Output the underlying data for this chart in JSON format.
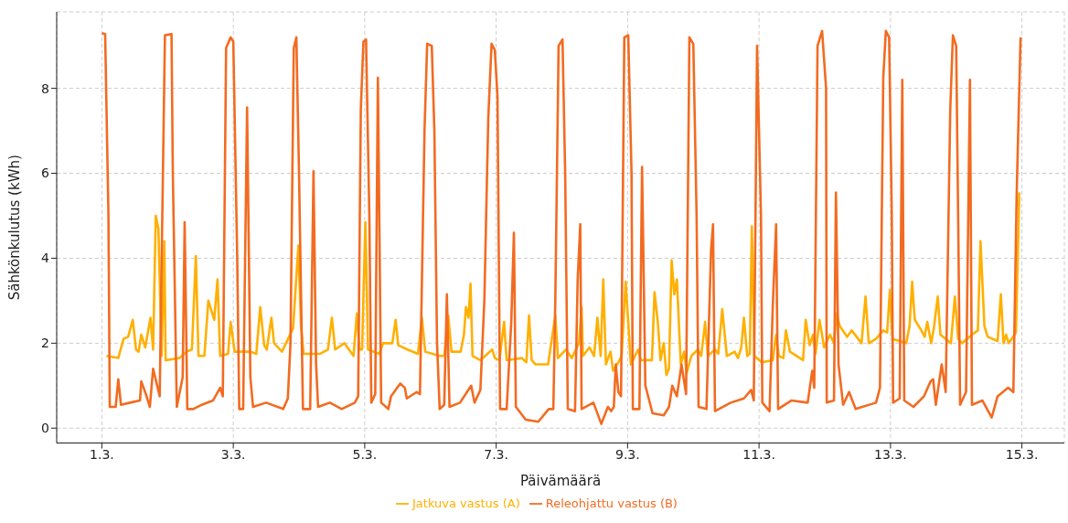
{
  "chart_data": {
    "type": "line",
    "xlabel": "Päivämäärä",
    "ylabel": "Sähkönkulutus (kWh)",
    "xlim": [
      "--02-28T07:30",
      "--03-15T15:30"
    ],
    "ylim": [
      -0.35,
      9.8
    ],
    "xticks": [
      {
        "value": "--03-01",
        "label": "1.3."
      },
      {
        "value": "--03-03",
        "label": "3.3."
      },
      {
        "value": "--03-05",
        "label": "5.3."
      },
      {
        "value": "--03-07",
        "label": "7.3."
      },
      {
        "value": "--03-09",
        "label": "9.3."
      },
      {
        "value": "--03-11",
        "label": "11.3."
      },
      {
        "value": "--03-13",
        "label": "13.3."
      },
      {
        "value": "--03-15",
        "label": "15.3."
      }
    ],
    "yticks": [
      0,
      2,
      4,
      6,
      8
    ],
    "grid": true,
    "legend": "bottom",
    "line_style": "solid",
    "marker": "none",
    "series": [
      {
        "name": "Jatkuva vastus (A)",
        "color": "#ffb000",
        "x": [
          "--03-01T01:41",
          "--03-01T06:00",
          "--03-01T07:55",
          "--03-01T09:36",
          "--03-01T11:17",
          "--03-01T12:29",
          "--03-01T13:26",
          "--03-01T14:24",
          "--03-01T15:50",
          "--03-01T17:46",
          "--03-01T18:43",
          "--03-01T19:41",
          "--03-01T20:38",
          "--03-01T21:50",
          "--03-01T22:48",
          "--03-01T23:17",
          "--03-02T04:19",
          "--03-02T06:58",
          "--03-02T08:53",
          "--03-02T10:19",
          "--03-02T11:17",
          "--03-02T13:26",
          "--03-02T14:53",
          "--03-02T17:02",
          "--03-02T18:14",
          "--03-02T19:12",
          "--03-02T22:05",
          "--03-02T23:02",
          "--03-03T00:29",
          "--03-03T06:14",
          "--03-03T08:24",
          "--03-03T09:50",
          "--03-03T11:17",
          "--03-03T12:14",
          "--03-03T13:55",
          "--03-03T14:53",
          "--03-03T17:46",
          "--03-03T21:50",
          "--03-03T23:46",
          "--03-04T00:43",
          "--03-04T01:41",
          "--03-04T07:41",
          "--03-04T10:34",
          "--03-04T12:00",
          "--03-04T13:12",
          "--03-04T16:34",
          "--03-04T19:55",
          "--03-04T21:07",
          "--03-04T22:05",
          "--03-04T23:02",
          "--03-05T00:14",
          "--03-05T01:12",
          "--03-05T05:17",
          "--03-05T06:43",
          "--03-05T10:05",
          "--03-05T11:17",
          "--03-05T12:14",
          "--03-05T15:36",
          "--03-05T19:26",
          "--03-05T20:53",
          "--03-05T22:05",
          "--03-06T03:22",
          "--03-06T05:02",
          "--03-06T06:29",
          "--03-06T07:41",
          "--03-06T11:02",
          "--03-06T12:14",
          "--03-06T12:58",
          "--03-06T13:55",
          "--03-06T14:38",
          "--03-06T15:22",
          "--03-06T18:14",
          "--03-06T22:34",
          "--03-06T23:31",
          "--03-07T01:12",
          "--03-07T02:53",
          "--03-07T03:50",
          "--03-07T09:22",
          "--03-07T11:02",
          "--03-07T12:00",
          "--03-07T12:58",
          "--03-07T14:24",
          "--03-07T18:58",
          "--03-07T21:36",
          "--03-07T22:34",
          "--03-08T01:26",
          "--03-08T03:36",
          "--03-08T06:14",
          "--03-08T07:12",
          "--03-08T07:41",
          "--03-08T10:05",
          "--03-08T11:46",
          "--03-08T12:58",
          "--03-08T14:10",
          "--03-08T15:07",
          "--03-08T16:05",
          "--03-08T17:46",
          "--03-08T18:43",
          "--03-08T20:38",
          "--03-08T21:50",
          "--03-08T23:17",
          "--03-09T00:14",
          "--03-09T01:12",
          "--03-09T03:50",
          "--03-09T04:48",
          "--03-09T08:53",
          "--03-09T09:50",
          "--03-09T11:02",
          "--03-09T12:00",
          "--03-09T13:12",
          "--03-09T14:10",
          "--03-09T15:07",
          "--03-09T16:05",
          "--03-09T17:02",
          "--03-09T18:00",
          "--03-09T19:26",
          "--03-09T20:38",
          "--03-09T21:36",
          "--03-09T23:17",
          "--03-10T01:41",
          "--03-10T02:53",
          "--03-10T04:19",
          "--03-10T05:17",
          "--03-10T07:55",
          "--03-10T09:07",
          "--03-10T10:34",
          "--03-10T12:14",
          "--03-10T15:07",
          "--03-10T16:19",
          "--03-10T17:31",
          "--03-10T18:29",
          "--03-10T19:41",
          "--03-10T20:38",
          "--03-10T21:22",
          "--03-10T22:19",
          "--03-11T00:58",
          "--03-11T05:02",
          "--03-11T06:14",
          "--03-11T07:12",
          "--03-11T08:53",
          "--03-11T09:50",
          "--03-11T11:17",
          "--03-11T16:05",
          "--03-11T17:02",
          "--03-11T18:29",
          "--03-11T19:41",
          "--03-11T20:38",
          "--03-11T22:05",
          "--03-11T23:46",
          "--03-12T01:55",
          "--03-12T03:22",
          "--03-12T04:19",
          "--03-12T05:31",
          "--03-12T08:10",
          "--03-12T09:50",
          "--03-12T13:26",
          "--03-12T14:53",
          "--03-12T16:05",
          "--03-12T18:43",
          "--03-12T21:22",
          "--03-12T22:48",
          "--03-12T23:46",
          "--03-13T00:43",
          "--03-13T03:22",
          "--03-13T05:46",
          "--03-13T06:58",
          "--03-13T07:55",
          "--03-13T08:53",
          "--03-13T11:17",
          "--03-13T12:29",
          "--03-13T13:26",
          "--03-13T14:53",
          "--03-13T15:50",
          "--03-13T17:17",
          "--03-13T18:14",
          "--03-13T22:05",
          "--03-13T23:31",
          "--03-14T00:43",
          "--03-14T02:10",
          "--03-14T05:46",
          "--03-14T07:55",
          "--03-14T08:53",
          "--03-14T10:19",
          "--03-14T11:31",
          "--03-14T15:07",
          "--03-14T16:19",
          "--03-14T17:17",
          "--03-14T18:14",
          "--03-14T19:12",
          "--03-14T21:50",
          "--03-14T23:02"
        ],
        "values": [
          1.7,
          1.65,
          2.1,
          2.15,
          2.55,
          1.85,
          1.8,
          2.2,
          1.9,
          2.6,
          1.85,
          5.0,
          4.7,
          1.7,
          4.4,
          1.6,
          1.65,
          1.8,
          1.85,
          4.05,
          1.7,
          1.7,
          3.0,
          2.55,
          3.5,
          1.7,
          1.75,
          2.5,
          1.8,
          1.8,
          1.75,
          2.85,
          1.95,
          1.85,
          2.6,
          2.0,
          1.8,
          2.35,
          4.3,
          2.4,
          1.75,
          1.75,
          1.85,
          2.6,
          1.85,
          2.0,
          1.7,
          2.7,
          1.85,
          1.85,
          4.85,
          1.85,
          1.75,
          2.0,
          2.0,
          2.55,
          1.95,
          1.85,
          1.75,
          2.6,
          1.8,
          1.7,
          1.7,
          2.65,
          1.8,
          1.8,
          2.2,
          2.85,
          2.6,
          3.4,
          1.7,
          1.6,
          1.85,
          1.65,
          1.6,
          2.5,
          1.6,
          1.65,
          1.55,
          2.65,
          1.6,
          1.5,
          1.5,
          2.65,
          1.65,
          1.85,
          1.65,
          2.0,
          2.85,
          1.7,
          1.9,
          1.7,
          2.6,
          1.7,
          3.5,
          1.5,
          1.8,
          1.35,
          1.55,
          1.7,
          3.45,
          2.5,
          1.5,
          1.85,
          1.6,
          1.6,
          3.2,
          2.5,
          1.6,
          2.0,
          1.25,
          1.4,
          3.95,
          3.15,
          3.5,
          1.5,
          1.8,
          1.3,
          1.7,
          1.85,
          1.7,
          2.5,
          1.7,
          1.85,
          1.75,
          2.8,
          1.7,
          1.8,
          1.65,
          1.9,
          2.6,
          1.7,
          1.75,
          4.75,
          1.7,
          1.55,
          1.6,
          2.2,
          1.7,
          1.65,
          2.3,
          1.8,
          1.6,
          2.55,
          1.95,
          2.2,
          1.75,
          2.55,
          1.9,
          2.2,
          2.0,
          2.7,
          2.4,
          2.15,
          2.3,
          2.0,
          3.1,
          2.0,
          2.1,
          2.3,
          2.25,
          3.25,
          2.1,
          2.05,
          2.0,
          2.4,
          3.45,
          2.55,
          2.3,
          2.15,
          2.5,
          2.0,
          2.35,
          3.1,
          2.2,
          2.0,
          3.1,
          2.1,
          2.0,
          2.2,
          2.3,
          4.4,
          2.4,
          2.15,
          2.05,
          3.15,
          2.0,
          2.2,
          2.0,
          2.25,
          5.55
        ]
      },
      {
        "name": "Releohjattu vastus (B)",
        "color": "#f26b21",
        "x": [
          "--03-01T00:00",
          "--03-01T01:12",
          "--03-01T02:24",
          "--03-01T02:53",
          "--03-01T05:02",
          "--03-01T06:00",
          "--03-01T06:58",
          "--03-01T10:19",
          "--03-01T13:55",
          "--03-01T14:24",
          "--03-01T16:05",
          "--03-01T17:31",
          "--03-01T18:43",
          "--03-01T21:07",
          "--03-01T23:02",
          "--03-02T01:26",
          "--03-02T01:55",
          "--03-02T03:22",
          "--03-02T05:31",
          "--03-02T06:14",
          "--03-02T07:12",
          "--03-02T09:22",
          "--03-02T12:29",
          "--03-02T16:34",
          "--03-02T19:12",
          "--03-02T20:10",
          "--03-02T21:22",
          "--03-02T23:02",
          "--03-03T00:00",
          "--03-03T01:26",
          "--03-03T02:10",
          "--03-03T03:36",
          "--03-03T05:02",
          "--03-03T06:14",
          "--03-03T07:12",
          "--03-03T12:00",
          "--03-03T18:14",
          "--03-03T19:55",
          "--03-03T20:53",
          "--03-03T22:05",
          "--03-03T23:02",
          "--03-04T00:00",
          "--03-04T01:26",
          "--03-04T03:07",
          "--03-04T04:05",
          "--03-04T05:17",
          "--03-04T06:14",
          "--03-04T06:58",
          "--03-04T11:17",
          "--03-04T15:36",
          "--03-04T20:24",
          "--03-04T21:36",
          "--03-04T22:34",
          "--03-04T23:31",
          "--03-05T00:29",
          "--03-05T01:41",
          "--03-05T02:24",
          "--03-05T03:50",
          "--03-05T04:48",
          "--03-05T06:00",
          "--03-05T08:38",
          "--03-05T09:36",
          "--03-05T12:58",
          "--03-05T14:38",
          "--03-05T15:22",
          "--03-05T18:58",
          "--03-05T20:10",
          "--03-05T21:50",
          "--03-05T22:48",
          "--03-06T00:29",
          "--03-06T01:26",
          "--03-06T02:24",
          "--03-06T03:22",
          "--03-06T05:02",
          "--03-06T06:00",
          "--03-06T06:58",
          "--03-06T10:48",
          "--03-06T14:53",
          "--03-06T16:05",
          "--03-06T18:14",
          "--03-06T19:41",
          "--03-06T21:07",
          "--03-06T22:19",
          "--03-06T23:31",
          "--03-07T00:29",
          "--03-07T01:26",
          "--03-07T03:50",
          "--03-07T05:31",
          "--03-07T06:29",
          "--03-07T07:12",
          "--03-07T10:48",
          "--03-07T15:22",
          "--03-07T19:12",
          "--03-07T20:53",
          "--03-07T21:36",
          "--03-07T22:48",
          "--03-08T00:14",
          "--03-08T01:12",
          "--03-08T02:10",
          "--03-08T04:48",
          "--03-08T05:46",
          "--03-08T06:43",
          "--03-08T07:12",
          "--03-08T11:31",
          "--03-08T14:24",
          "--03-08T16:48",
          "--03-08T18:00",
          "--03-08T18:58",
          "--03-08T19:41",
          "--03-08T20:38",
          "--03-08T21:36",
          "--03-08T22:48",
          "--03-09T00:14",
          "--03-09T01:26",
          "--03-09T01:55",
          "--03-09T04:19",
          "--03-09T05:17",
          "--03-09T06:29",
          "--03-09T09:07",
          "--03-09T13:12",
          "--03-09T15:07",
          "--03-09T16:19",
          "--03-09T18:00",
          "--03-09T19:41",
          "--03-09T21:22",
          "--03-09T22:34",
          "--03-10T00:00",
          "--03-10T01:12",
          "--03-10T01:55",
          "--03-10T04:48",
          "--03-10T06:29",
          "--03-10T07:12",
          "--03-10T07:55",
          "--03-10T13:41",
          "--03-10T18:29",
          "--03-10T21:07",
          "--03-10T22:05",
          "--03-10T23:17",
          "--03-11T00:43",
          "--03-11T01:12",
          "--03-11T03:50",
          "--03-11T05:02",
          "--03-11T06:14",
          "--03-11T06:58",
          "--03-11T11:46",
          "--03-11T17:46",
          "--03-11T19:26",
          "--03-11T20:10",
          "--03-11T21:22",
          "--03-11T23:02",
          "--03-12T00:29",
          "--03-12T00:43",
          "--03-12T03:22",
          "--03-12T04:05",
          "--03-12T05:02",
          "--03-12T06:43",
          "--03-12T08:53",
          "--03-12T11:17",
          "--03-12T18:43",
          "--03-12T20:10",
          "--03-12T21:22",
          "--03-12T22:19",
          "--03-12T23:31",
          "--03-13T00:29",
          "--03-13T00:58",
          "--03-13T03:22",
          "--03-13T04:19",
          "--03-13T05:02",
          "--03-13T08:24",
          "--03-13T12:14",
          "--03-13T14:38",
          "--03-13T15:36",
          "--03-13T16:34",
          "--03-13T18:43",
          "--03-13T20:10",
          "--03-13T21:50",
          "--03-13T22:48",
          "--03-14T00:00",
          "--03-14T00:43",
          "--03-14T01:26",
          "--03-14T03:36",
          "--03-14T05:02",
          "--03-14T05:46",
          "--03-14T09:36",
          "--03-14T12:58",
          "--03-14T15:07",
          "--03-14T18:58",
          "--03-14T20:53",
          "--03-14T22:05",
          "--03-14T23:31"
        ],
        "values": [
          9.3,
          9.28,
          5,
          0.5,
          0.5,
          1.15,
          0.55,
          0.6,
          0.65,
          1.1,
          0.8,
          0.5,
          1.4,
          0.75,
          9.25,
          9.28,
          6,
          0.5,
          1.2,
          4.85,
          0.45,
          0.45,
          0.55,
          0.65,
          0.95,
          0.75,
          8.95,
          9.2,
          9.1,
          4,
          0.45,
          0.45,
          7.55,
          1.2,
          0.5,
          0.6,
          0.45,
          0.7,
          2,
          8.95,
          9.2,
          6,
          0.45,
          0.45,
          0.45,
          6.05,
          1.5,
          0.5,
          0.6,
          0.45,
          0.6,
          0.75,
          7.5,
          9.1,
          9.15,
          5,
          0.6,
          0.8,
          8.25,
          0.6,
          0.45,
          0.75,
          1.05,
          0.95,
          0.7,
          0.85,
          0.8,
          7,
          9.05,
          9.0,
          7,
          2,
          0.45,
          0.55,
          3.15,
          0.5,
          0.6,
          1.0,
          0.6,
          0.9,
          3,
          7.3,
          9.05,
          8.9,
          7.8,
          0.45,
          0.45,
          2.5,
          4.6,
          0.5,
          0.2,
          0.15,
          0.45,
          0.45,
          3,
          9,
          9.15,
          6,
          0.45,
          0.4,
          3.5,
          4.8,
          0.45,
          0.6,
          0.1,
          0.5,
          0.4,
          0.5,
          1.5,
          0.85,
          0.75,
          9.2,
          9.25,
          6,
          0.45,
          0.45,
          6.15,
          1,
          0.35,
          0.3,
          0.5,
          1.0,
          0.75,
          1.5,
          0.8,
          9.2,
          9.05,
          5,
          0.5,
          0.45,
          4.2,
          4.8,
          0.4,
          0.6,
          0.7,
          0.9,
          0.65,
          9.0,
          5,
          0.6,
          0.4,
          2.9,
          4.8,
          0.45,
          0.65,
          0.6,
          1.35,
          0.95,
          9.0,
          9.35,
          8,
          0.6,
          0.65,
          5.55,
          1.5,
          0.55,
          0.85,
          0.45,
          0.6,
          0.95,
          8.25,
          9.35,
          9.2,
          5,
          0.6,
          0.7,
          8.2,
          0.65,
          0.5,
          0.75,
          1.1,
          1.15,
          0.55,
          1.5,
          0.85,
          7.5,
          9.25,
          9.0,
          5,
          0.55,
          0.85,
          8.2,
          0.55,
          0.65,
          0.25,
          0.75,
          0.95,
          0.85,
          5.5,
          9.2
        ]
      }
    ]
  }
}
